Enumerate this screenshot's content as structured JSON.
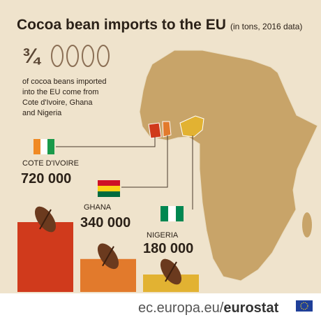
{
  "chart_data": {
    "type": "bar",
    "title": "Cocoa bean imports to the EU",
    "subtitle": "(in tons, 2016 data)",
    "fraction": "¾",
    "description": [
      "of cocoa beans imported",
      "into the EU come from",
      "Cote d'Ivoire, Ghana",
      "and Nigeria"
    ],
    "categories": [
      "COTE D'IVOIRE",
      "GHANA",
      "NIGERIA"
    ],
    "values": [
      720000,
      340000,
      180000
    ],
    "value_labels": [
      "720 000",
      "340 000",
      "180 000"
    ],
    "colors": [
      "#d03a1c",
      "#e27a2c",
      "#e2b232"
    ]
  },
  "footer": {
    "site": "ec.europa.eu/",
    "brand": "eurostat"
  }
}
